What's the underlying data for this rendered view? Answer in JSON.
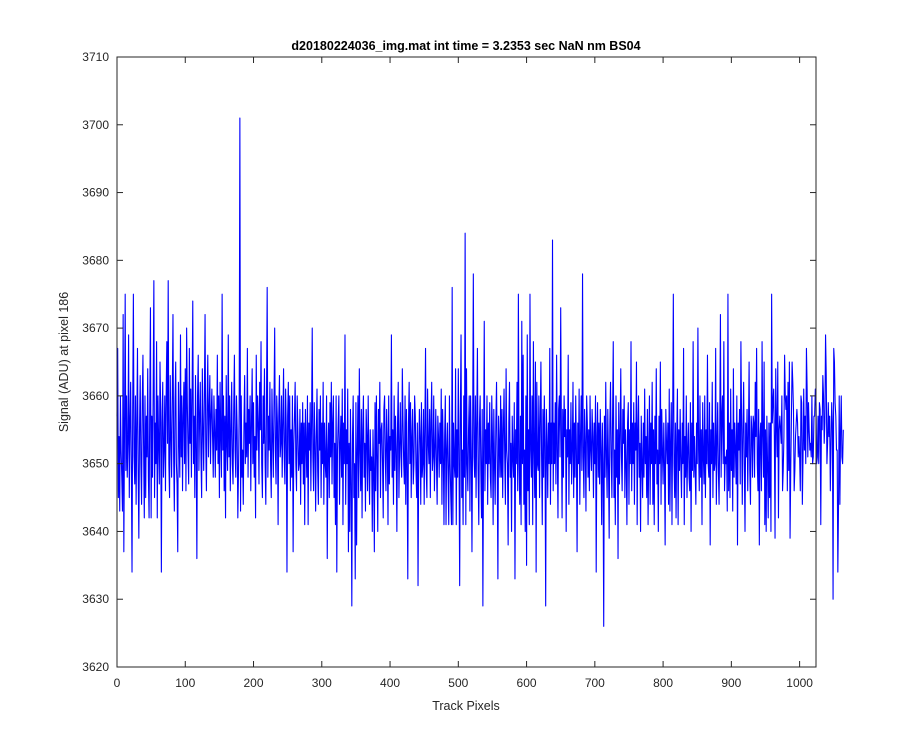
{
  "chart_data": {
    "type": "line",
    "title": "d20180224036_img.mat int time = 3.2353 sec  NaN nm BS04",
    "xlabel": "Track Pixels",
    "ylabel": "Signal (ADU) at pixel 186",
    "xlim": [
      0,
      1024
    ],
    "ylim": [
      3620,
      3710
    ],
    "xticks": [
      0,
      100,
      200,
      300,
      400,
      500,
      600,
      700,
      800,
      900,
      1000
    ],
    "yticks": [
      3620,
      3630,
      3640,
      3650,
      3660,
      3670,
      3680,
      3690,
      3700,
      3710
    ],
    "grid": false,
    "line_color": "#0000ff",
    "series": [
      {
        "values": [
          3657,
          3667,
          3645,
          3654,
          3643,
          3660,
          3652,
          3648,
          3643,
          3672,
          3637,
          3655,
          3675,
          3649,
          3660,
          3648,
          3653,
          3669,
          3645,
          3656,
          3662,
          3650,
          3634,
          3658,
          3675,
          3651,
          3647,
          3660,
          3644,
          3656,
          3667,
          3649,
          3639,
          3655,
          3663,
          3650,
          3644,
          3659,
          3666,
          3652,
          3642,
          3660,
          3645,
          3657,
          3651,
          3664,
          3648,
          3642,
          3659,
          3673,
          3642,
          3657,
          3648,
          3661,
          3677,
          3645,
          3656,
          3650,
          3668,
          3642,
          3660,
          3653,
          3647,
          3665,
          3658,
          3634,
          3656,
          3662,
          3648,
          3652,
          3660,
          3646,
          3660,
          3668,
          3653,
          3677,
          3650,
          3645,
          3663,
          3654,
          3648,
          3660,
          3672,
          3651,
          3643,
          3659,
          3665,
          3650,
          3647,
          3637,
          3662,
          3654,
          3648,
          3669,
          3651,
          3660,
          3646,
          3657,
          3662,
          3650,
          3664,
          3646,
          3670,
          3659,
          3652,
          3647,
          3667,
          3653,
          3661,
          3648,
          3660,
          3674,
          3650,
          3657,
          3645,
          3663,
          3653,
          3636,
          3660,
          3666,
          3649,
          3657,
          3662,
          3651,
          3645,
          3664,
          3655,
          3649,
          3660,
          3672,
          3653,
          3646,
          3659,
          3666,
          3651,
          3658,
          3663,
          3650,
          3657,
          3661,
          3654,
          3648,
          3660,
          3655,
          3648,
          3658,
          3652,
          3666,
          3650,
          3660,
          3645,
          3662,
          3654,
          3648,
          3675,
          3652,
          3660,
          3646,
          3657,
          3642,
          3663,
          3653,
          3649,
          3669,
          3651,
          3660,
          3646,
          3655,
          3662,
          3650,
          3647,
          3658,
          3666,
          3652,
          3648,
          3660,
          3655,
          3642,
          3649,
          3658,
          3701,
          3643,
          3660,
          3648,
          3652,
          3644,
          3656,
          3663,
          3650,
          3656,
          3651,
          3667,
          3648,
          3658,
          3653,
          3660,
          3646,
          3656,
          3664,
          3650,
          3659,
          3648,
          3654,
          3642,
          3666,
          3652,
          3660,
          3656,
          3647,
          3662,
          3655,
          3668,
          3650,
          3645,
          3660,
          3653,
          3664,
          3650,
          3644,
          3659,
          3676,
          3648,
          3657,
          3652,
          3662,
          3650,
          3645,
          3661,
          3654,
          3648,
          3659,
          3670,
          3652,
          3647,
          3660,
          3656,
          3641,
          3657,
          3663,
          3651,
          3653,
          3660,
          3648,
          3656,
          3664,
          3651,
          3647,
          3661,
          3655,
          3634,
          3657,
          3662,
          3650,
          3660,
          3646,
          3655,
          3648,
          3660,
          3637,
          3653,
          3657,
          3662,
          3650,
          3646,
          3660,
          3655,
          3649,
          3650,
          3658,
          3644,
          3656,
          3650,
          3659,
          3647,
          3656,
          3641,
          3658,
          3653,
          3648,
          3660,
          3641,
          3656,
          3652,
          3659,
          3646,
          3656,
          3670,
          3651,
          3646,
          3659,
          3653,
          3643,
          3654,
          3661,
          3649,
          3644,
          3658,
          3652,
          3660,
          3645,
          3656,
          3650,
          3662,
          3644,
          3656,
          3650,
          3648,
          3660,
          3636,
          3652,
          3656,
          3645,
          3659,
          3651,
          3662,
          3647,
          3656,
          3660,
          3645,
          3653,
          3641,
          3660,
          3634,
          3652,
          3656,
          3660,
          3644,
          3653,
          3657,
          3648,
          3661,
          3641,
          3656,
          3650,
          3669,
          3644,
          3655,
          3650,
          3661,
          3637,
          3653,
          3640,
          3658,
          3647,
          3629,
          3654,
          3660,
          3645,
          3650,
          3633,
          3659,
          3638,
          3652,
          3660,
          3645,
          3664,
          3652,
          3646,
          3658,
          3642,
          3655,
          3660,
          3648,
          3653,
          3643,
          3658,
          3654,
          3646,
          3660,
          3650,
          3644,
          3655,
          3649,
          3651,
          3640,
          3655,
          3649,
          3637,
          3659,
          3646,
          3660,
          3651,
          3640,
          3658,
          3653,
          3662,
          3645,
          3655,
          3656,
          3650,
          3642,
          3658,
          3660,
          3651,
          3646,
          3658,
          3653,
          3641,
          3660,
          3647,
          3654,
          3652,
          3669,
          3648,
          3655,
          3644,
          3660,
          3649,
          3657,
          3652,
          3640,
          3656,
          3662,
          3645,
          3652,
          3659,
          3651,
          3648,
          3664,
          3656,
          3650,
          3647,
          3660,
          3644,
          3658,
          3650,
          3633,
          3656,
          3662,
          3650,
          3659,
          3645,
          3654,
          3658,
          3647,
          3650,
          3660,
          3657,
          3649,
          3645,
          3656,
          3632,
          3651,
          3658,
          3654,
          3644,
          3659,
          3648,
          3650,
          3658,
          3644,
          3655,
          3667,
          3649,
          3645,
          3661,
          3653,
          3650,
          3658,
          3645,
          3656,
          3662,
          3649,
          3651,
          3660,
          3646,
          3652,
          3658,
          3650,
          3644,
          3657,
          3654,
          3648,
          3656,
          3650,
          3661,
          3644,
          3658,
          3652,
          3641,
          3654,
          3660,
          3641,
          3652,
          3656,
          3648,
          3641,
          3660,
          3650,
          3645,
          3641,
          3676,
          3641,
          3656,
          3650,
          3648,
          3664,
          3641,
          3655,
          3648,
          3664,
          3652,
          3632,
          3657,
          3669,
          3645,
          3652,
          3641,
          3660,
          3648,
          3684,
          3641,
          3664,
          3650,
          3646,
          3655,
          3660,
          3643,
          3660,
          3652,
          3637,
          3655,
          3678,
          3651,
          3648,
          3660,
          3645,
          3656,
          3667,
          3649,
          3641,
          3656,
          3660,
          3649,
          3642,
          3658,
          3629,
          3652,
          3671,
          3646,
          3655,
          3650,
          3660,
          3644,
          3656,
          3650,
          3659,
          3648,
          3645,
          3660,
          3654,
          3641,
          3658,
          3650,
          3644,
          3656,
          3662,
          3650,
          3633,
          3657,
          3653,
          3648,
          3660,
          3648,
          3658,
          3645,
          3655,
          3661,
          3651,
          3644,
          3664,
          3652,
          3650,
          3638,
          3656,
          3662,
          3648,
          3653,
          3640,
          3657,
          3651,
          3648,
          3659,
          3633,
          3655,
          3650,
          3662,
          3646,
          3675,
          3650,
          3644,
          3657,
          3641,
          3671,
          3650,
          3666,
          3644,
          3652,
          3640,
          3660,
          3635,
          3669,
          3646,
          3655,
          3641,
          3675,
          3652,
          3648,
          3660,
          3641,
          3668,
          3652,
          3645,
          3665,
          3634,
          3662,
          3650,
          3649,
          3660,
          3645,
          3656,
          3665,
          3651,
          3641,
          3658,
          3648,
          3660,
          3653,
          3629,
          3658,
          3653,
          3645,
          3656,
          3650,
          3667,
          3644,
          3656,
          3650,
          3683,
          3646,
          3656,
          3650,
          3659,
          3647,
          3666,
          3652,
          3642,
          3658,
          3660,
          3651,
          3673,
          3655,
          3642,
          3658,
          3648,
          3660,
          3654,
          3658,
          3640,
          3655,
          3651,
          3666,
          3644,
          3655,
          3650,
          3659,
          3647,
          3652,
          3662,
          3645,
          3656,
          3648,
          3660,
          3652,
          3637,
          3656,
          3650,
          3661,
          3644,
          3654,
          3660,
          3649,
          3678,
          3651,
          3645,
          3658,
          3653,
          3643,
          3660,
          3656,
          3648,
          3655,
          3646,
          3660,
          3652,
          3649,
          3658,
          3654,
          3645,
          3656,
          3650,
          3660,
          3634,
          3654,
          3659,
          3648,
          3656,
          3647,
          3658,
          3652,
          3641,
          3656,
          3650,
          3626,
          3657,
          3648,
          3662,
          3651,
          3645,
          3658,
          3650,
          3639,
          3656,
          3662,
          3651,
          3645,
          3657,
          3668,
          3645,
          3652,
          3641,
          3660,
          3648,
          3655,
          3636,
          3659,
          3647,
          3654,
          3664,
          3651,
          3646,
          3658,
          3653,
          3660,
          3645,
          3655,
          3650,
          3641,
          3656,
          3659,
          3644,
          3655,
          3650,
          3668,
          3646,
          3656,
          3650,
          3659,
          3644,
          3656,
          3652,
          3665,
          3641,
          3655,
          3660,
          3648,
          3653,
          3640,
          3657,
          3650,
          3645,
          3656,
          3648,
          3661,
          3650,
          3654,
          3645,
          3658,
          3641,
          3652,
          3660,
          3644,
          3656,
          3650,
          3662,
          3644,
          3655,
          3641,
          3657,
          3650,
          3664,
          3647,
          3652,
          3640,
          3657,
          3650,
          3665,
          3644,
          3658,
          3652,
          3647,
          3656,
          3650,
          3638,
          3658,
          3653,
          3650,
          3656,
          3644,
          3661,
          3643,
          3653,
          3659,
          3641,
          3656,
          3675,
          3650,
          3645,
          3656,
          3642,
          3654,
          3661,
          3641,
          3655,
          3649,
          3658,
          3650,
          3645,
          3656,
          3650,
          3667,
          3641,
          3654,
          3648,
          3660,
          3645,
          3652,
          3656,
          3648,
          3646,
          3659,
          3640,
          3656,
          3649,
          3668,
          3648,
          3654,
          3649,
          3644,
          3656,
          3650,
          3670,
          3652,
          3646,
          3660,
          3648,
          3655,
          3641,
          3659,
          3651,
          3647,
          3660,
          3645,
          3655,
          3650,
          3666,
          3650,
          3648,
          3659,
          3638,
          3655,
          3650,
          3662,
          3645,
          3656,
          3649,
          3650,
          3667,
          3644,
          3653,
          3659,
          3649,
          3644,
          3655,
          3672,
          3648,
          3657,
          3660,
          3650,
          3668,
          3646,
          3651,
          3650,
          3652,
          3643,
          3675,
          3646,
          3656,
          3645,
          3661,
          3649,
          3655,
          3643,
          3664,
          3648,
          3656,
          3652,
          3647,
          3660,
          3638,
          3656,
          3652,
          3658,
          3647,
          3668,
          3656,
          3644,
          3655,
          3662,
          3650,
          3640,
          3656,
          3651,
          3658,
          3646,
          3654,
          3665,
          3649,
          3644,
          3657,
          3655,
          3648,
          3657,
          3656,
          3648,
          3662,
          3654,
          3667,
          3650,
          3646,
          3658,
          3638,
          3654,
          3656,
          3646,
          3668,
          3654,
          3648,
          3665,
          3641,
          3655,
          3640,
          3657,
          3650,
          3642,
          3656,
          3645,
          3656,
          3640,
          3675,
          3656,
          3659,
          3661,
          3654,
          3639,
          3664,
          3656,
          3651,
          3665,
          3642,
          3655,
          3657,
          3655,
          3653,
          3660,
          3646,
          3649,
          3654,
          3666,
          3660,
          3658,
          3660,
          3646,
          3662,
          3649,
          3665,
          3639,
          3649,
          3657,
          3665,
          3662,
          3658,
          3646,
          3649,
          3654,
          3656,
          3658,
          3656,
          3651,
          3654,
          3651,
          3646,
          3660,
          3659,
          3644,
          3651,
          3661,
          3652,
          3657,
          3650,
          3667,
          3661,
          3651,
          3659,
          3655,
          3652,
          3653,
          3651,
          3660,
          3650,
          3651,
          3657,
          3657,
          3661,
          3659,
          3650,
          3651,
          3657,
          3650,
          3659,
          3658,
          3641,
          3657,
          3655,
          3663,
          3660,
          3653,
          3656,
          3669,
          3663,
          3650,
          3653,
          3659,
          3654,
          3657,
          3646,
          3653,
          3659,
          3656,
          3630,
          3667,
          3665,
          3659,
          3657,
          3652,
          3652,
          3634,
          3644,
          3660,
          3644,
          3655,
          3660,
          3651,
          3650,
          3655
        ]
      }
    ]
  }
}
